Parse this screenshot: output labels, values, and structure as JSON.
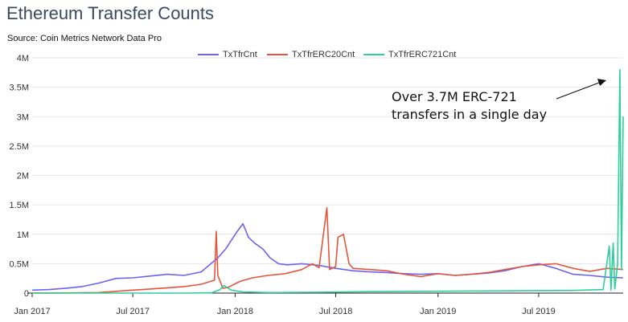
{
  "header": {
    "title": "Ethereum Transfer Counts",
    "source": "Source: Coin Metrics Network Data Pro"
  },
  "annotation": {
    "line1": "Over 3.7M ERC-721",
    "line2": "transfers in a single day"
  },
  "colors": {
    "TxTfrCnt": "#6b63f2",
    "TxTfrERC20Cnt": "#e5553c",
    "TxTfrERC721Cnt": "#2ecf99",
    "grid": "#e6e6e6",
    "axis": "#222222"
  },
  "chart_data": {
    "type": "line",
    "title": "Ethereum Transfer Counts",
    "subtitle": "Source: Coin Metrics Network Data Pro",
    "xlabel": "",
    "ylabel": "",
    "xlim": [
      "2017-01-01",
      "2019-11-30"
    ],
    "ylim": [
      0,
      4000000
    ],
    "grid": "horizontal",
    "legend_position": "top-center",
    "x_ticks": [
      {
        "date": "2017-01-01",
        "label": "Jan 2017"
      },
      {
        "date": "2017-07-01",
        "label": "Jul 2017"
      },
      {
        "date": "2018-01-01",
        "label": "Jan 2018"
      },
      {
        "date": "2018-07-01",
        "label": "Jul 2018"
      },
      {
        "date": "2019-01-01",
        "label": "Jan 2019"
      },
      {
        "date": "2019-07-01",
        "label": "Jul 2019"
      }
    ],
    "y_ticks": [
      {
        "value": 0,
        "label": "0"
      },
      {
        "value": 500000,
        "label": "0.5M"
      },
      {
        "value": 1000000,
        "label": "1M"
      },
      {
        "value": 1500000,
        "label": "1.5M"
      },
      {
        "value": 2000000,
        "label": "2M"
      },
      {
        "value": 2500000,
        "label": "2.5M"
      },
      {
        "value": 3000000,
        "label": "3M"
      },
      {
        "value": 3500000,
        "label": "3.5M"
      },
      {
        "value": 4000000,
        "label": "4M"
      }
    ],
    "series": [
      {
        "name": "TxTfrCnt",
        "points": [
          [
            "2017-01-01",
            50000
          ],
          [
            "2017-02-01",
            60000
          ],
          [
            "2017-03-01",
            80000
          ],
          [
            "2017-04-01",
            110000
          ],
          [
            "2017-05-01",
            170000
          ],
          [
            "2017-06-01",
            250000
          ],
          [
            "2017-07-01",
            260000
          ],
          [
            "2017-08-01",
            290000
          ],
          [
            "2017-09-01",
            320000
          ],
          [
            "2017-10-01",
            300000
          ],
          [
            "2017-11-01",
            360000
          ],
          [
            "2017-12-01",
            600000
          ],
          [
            "2017-12-15",
            750000
          ],
          [
            "2018-01-05",
            1050000
          ],
          [
            "2018-01-15",
            1180000
          ],
          [
            "2018-01-25",
            950000
          ],
          [
            "2018-02-05",
            850000
          ],
          [
            "2018-02-20",
            750000
          ],
          [
            "2018-03-05",
            600000
          ],
          [
            "2018-03-20",
            500000
          ],
          [
            "2018-04-05",
            480000
          ],
          [
            "2018-05-01",
            500000
          ],
          [
            "2018-06-01",
            470000
          ],
          [
            "2018-07-01",
            420000
          ],
          [
            "2018-08-01",
            380000
          ],
          [
            "2018-09-01",
            360000
          ],
          [
            "2018-10-01",
            350000
          ],
          [
            "2018-11-01",
            330000
          ],
          [
            "2018-12-01",
            320000
          ],
          [
            "2019-01-01",
            330000
          ],
          [
            "2019-02-01",
            300000
          ],
          [
            "2019-03-01",
            320000
          ],
          [
            "2019-04-01",
            340000
          ],
          [
            "2019-05-01",
            380000
          ],
          [
            "2019-06-01",
            450000
          ],
          [
            "2019-07-01",
            500000
          ],
          [
            "2019-08-01",
            420000
          ],
          [
            "2019-09-01",
            320000
          ],
          [
            "2019-10-01",
            300000
          ],
          [
            "2019-11-01",
            270000
          ],
          [
            "2019-11-30",
            260000
          ]
        ]
      },
      {
        "name": "TxTfrERC20Cnt",
        "points": [
          [
            "2017-01-01",
            2000
          ],
          [
            "2017-03-01",
            3000
          ],
          [
            "2017-05-01",
            10000
          ],
          [
            "2017-06-01",
            30000
          ],
          [
            "2017-07-01",
            50000
          ],
          [
            "2017-08-01",
            70000
          ],
          [
            "2017-09-01",
            90000
          ],
          [
            "2017-10-01",
            110000
          ],
          [
            "2017-11-01",
            150000
          ],
          [
            "2017-11-25",
            220000
          ],
          [
            "2017-11-28",
            1050000
          ],
          [
            "2017-12-01",
            300000
          ],
          [
            "2017-12-10",
            80000
          ],
          [
            "2017-12-20",
            100000
          ],
          [
            "2018-01-10",
            200000
          ],
          [
            "2018-02-01",
            260000
          ],
          [
            "2018-03-01",
            300000
          ],
          [
            "2018-04-01",
            330000
          ],
          [
            "2018-05-01",
            400000
          ],
          [
            "2018-05-20",
            500000
          ],
          [
            "2018-06-01",
            430000
          ],
          [
            "2018-06-15",
            1450000
          ],
          [
            "2018-06-20",
            400000
          ],
          [
            "2018-07-01",
            450000
          ],
          [
            "2018-07-05",
            950000
          ],
          [
            "2018-07-15",
            1000000
          ],
          [
            "2018-07-25",
            500000
          ],
          [
            "2018-08-01",
            420000
          ],
          [
            "2018-09-01",
            400000
          ],
          [
            "2018-10-01",
            380000
          ],
          [
            "2018-11-01",
            320000
          ],
          [
            "2018-12-01",
            280000
          ],
          [
            "2019-01-01",
            330000
          ],
          [
            "2019-02-01",
            300000
          ],
          [
            "2019-03-01",
            320000
          ],
          [
            "2019-04-01",
            350000
          ],
          [
            "2019-05-01",
            400000
          ],
          [
            "2019-06-01",
            450000
          ],
          [
            "2019-07-01",
            480000
          ],
          [
            "2019-08-01",
            500000
          ],
          [
            "2019-09-01",
            420000
          ],
          [
            "2019-10-01",
            370000
          ],
          [
            "2019-11-01",
            420000
          ],
          [
            "2019-11-30",
            400000
          ]
        ]
      },
      {
        "name": "TxTfrERC721Cnt",
        "points": [
          [
            "2017-01-01",
            0
          ],
          [
            "2017-10-01",
            0
          ],
          [
            "2017-11-20",
            5000
          ],
          [
            "2017-12-05",
            60000
          ],
          [
            "2017-12-12",
            130000
          ],
          [
            "2017-12-25",
            50000
          ],
          [
            "2018-01-15",
            20000
          ],
          [
            "2018-03-01",
            10000
          ],
          [
            "2018-06-01",
            15000
          ],
          [
            "2018-09-01",
            25000
          ],
          [
            "2018-12-01",
            30000
          ],
          [
            "2019-03-01",
            35000
          ],
          [
            "2019-06-01",
            40000
          ],
          [
            "2019-09-01",
            45000
          ],
          [
            "2019-10-25",
            60000
          ],
          [
            "2019-11-05",
            800000
          ],
          [
            "2019-11-08",
            50000
          ],
          [
            "2019-11-12",
            850000
          ],
          [
            "2019-11-15",
            70000
          ],
          [
            "2019-11-20",
            500000
          ],
          [
            "2019-11-24",
            3800000
          ],
          [
            "2019-11-27",
            400000
          ],
          [
            "2019-11-30",
            3000000
          ]
        ]
      }
    ]
  }
}
